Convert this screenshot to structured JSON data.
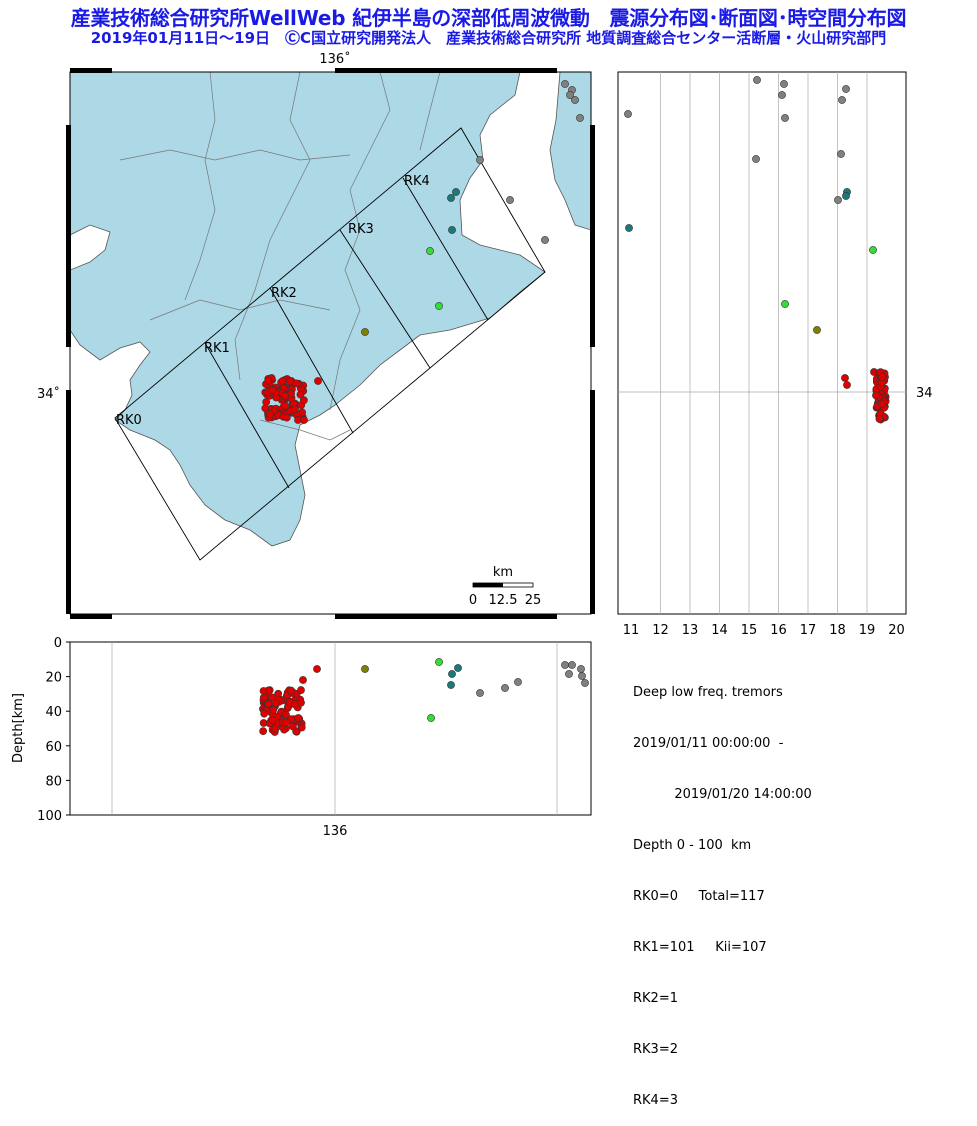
{
  "header": {
    "title": "産業技術総合研究所WellWeb 紀伊半島の深部低周波微動　震源分布図･断面図･時空間分布図",
    "subtitle": "2019年01月11日～19日　ⒸC国立研究開発法人　産業技術総合研究所 地質調査総合センター活断層・火山研究部門"
  },
  "map": {
    "lon_label": "136˚",
    "lat_label": "34˚",
    "segments": [
      "RK0",
      "RK1",
      "RK2",
      "RK3",
      "RK4"
    ],
    "scale": {
      "unit": "km",
      "ticks": [
        "0",
        "12.5",
        "25"
      ]
    },
    "sea_color": "#ffffff",
    "land_color": "#add8e6"
  },
  "time_plot": {
    "x_ticks": [
      "11",
      "12",
      "13",
      "14",
      "15",
      "16",
      "17",
      "18",
      "19",
      "20"
    ],
    "lat_label": "34"
  },
  "depth_plot": {
    "ylabel": "Depth[km]",
    "y_ticks": [
      "0",
      "20",
      "40",
      "60",
      "80",
      "100"
    ],
    "x_label": "136"
  },
  "info": {
    "lines": [
      "Deep low freq. tremors",
      "2019/01/11 00:00:00  -",
      "          2019/01/20 14:00:00",
      "Depth 0 - 100  km",
      "RK0=0     Total=117",
      "RK1=101     Kii=107",
      "RK2=1",
      "RK3=2",
      "RK4=3"
    ]
  },
  "colors": {
    "title": "#1a1ae6",
    "cluster": "#e00000",
    "gray": "#808080",
    "teal": "#1a7a7a",
    "green": "#33dd33",
    "olive": "#808000"
  },
  "chart_data": [
    {
      "type": "scatter",
      "title": "震源分布図",
      "series": [
        {
          "name": "RK1",
          "points_count": 101
        },
        {
          "name": "RK2",
          "points_count": 1
        },
        {
          "name": "RK3",
          "points_count": 2
        },
        {
          "name": "RK4",
          "points_count": 3
        }
      ]
    },
    {
      "type": "scatter",
      "title": "時空間分布図",
      "xlabel": "",
      "x_range": [
        11,
        20
      ]
    },
    {
      "type": "scatter",
      "title": "断面図",
      "ylabel": "Depth[km]",
      "y_range": [
        0,
        100
      ]
    }
  ]
}
